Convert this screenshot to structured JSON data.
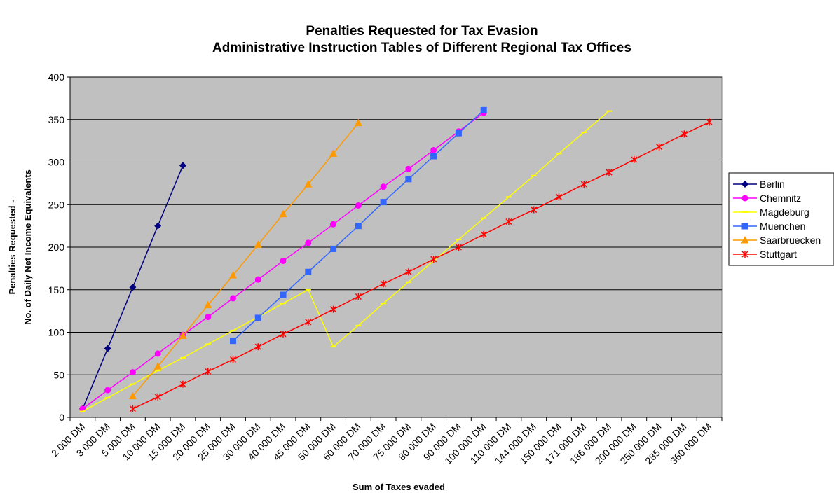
{
  "chart_data": {
    "type": "line",
    "title": "Penalties Requested for Tax Evasion",
    "subtitle": "Administrative Instruction Tables of Different Regional Tax Offices",
    "xlabel": "Sum of Taxes evaded",
    "ylabel": "Penalties Requested -",
    "ylabel2": "No. of Daily Net Income Equivalents",
    "ylim": [
      0,
      400
    ],
    "yticks": [
      0,
      50,
      100,
      150,
      200,
      250,
      300,
      350,
      400
    ],
    "grid": true,
    "legend_position": "right",
    "categories": [
      "2 000 DM",
      "3 000 DM",
      "5 000 DM",
      "10 000 DM",
      "15 000 DM",
      "20 000 DM",
      "25 000 DM",
      "30 000 DM",
      "40 000 DM",
      "45 000 DM",
      "50 000 DM",
      "60 000 DM",
      "70 000 DM",
      "75 000 DM",
      "80 000 DM",
      "90 000 DM",
      "100 000 DM",
      "110 000 DM",
      "144 000 DM",
      "150 000 DM",
      "171 000 DM",
      "186 000 DM",
      "200 000 DM",
      "250 000 DM",
      "285 000 DM",
      "360 000 DM"
    ],
    "series": [
      {
        "name": "Berlin",
        "color": "#000080",
        "marker": "diamond",
        "points": [
          [
            0,
            10
          ],
          [
            1,
            81
          ],
          [
            2,
            153
          ],
          [
            3,
            225
          ],
          [
            4,
            296
          ]
        ]
      },
      {
        "name": "Chemnitz",
        "color": "#FF00FF",
        "marker": "circle",
        "points": [
          [
            0,
            10
          ],
          [
            1,
            32
          ],
          [
            2,
            53
          ],
          [
            3,
            75
          ],
          [
            4,
            97
          ],
          [
            5,
            118
          ],
          [
            6,
            140
          ],
          [
            7,
            162
          ],
          [
            8,
            184
          ],
          [
            9,
            205
          ],
          [
            10,
            227
          ],
          [
            11,
            249
          ],
          [
            12,
            271
          ],
          [
            13,
            292
          ],
          [
            14,
            314
          ],
          [
            15,
            336
          ],
          [
            16,
            358
          ]
        ]
      },
      {
        "name": "Magdeburg",
        "color": "#FFFF00",
        "marker": "dash",
        "points": [
          [
            0,
            7
          ],
          [
            1,
            23
          ],
          [
            2,
            39
          ],
          [
            3,
            55
          ],
          [
            4,
            70
          ],
          [
            5,
            86
          ],
          [
            6,
            102
          ],
          [
            7,
            118
          ],
          [
            8,
            134
          ],
          [
            9,
            150
          ],
          [
            10,
            83
          ],
          [
            11,
            108
          ],
          [
            12,
            134
          ],
          [
            13,
            159
          ],
          [
            14,
            184
          ],
          [
            15,
            209
          ],
          [
            16,
            234
          ],
          [
            17,
            259
          ],
          [
            18,
            284
          ],
          [
            19,
            310
          ],
          [
            20,
            335
          ],
          [
            21,
            360
          ]
        ]
      },
      {
        "name": "Muenchen",
        "color": "#3366FF",
        "marker": "square",
        "points": [
          [
            6,
            90
          ],
          [
            7,
            117
          ],
          [
            8,
            144
          ],
          [
            9,
            171
          ],
          [
            10,
            198
          ],
          [
            11,
            225
          ],
          [
            12,
            253
          ],
          [
            13,
            280
          ],
          [
            14,
            307
          ],
          [
            15,
            334
          ],
          [
            16,
            361
          ]
        ]
      },
      {
        "name": "Saarbruecken",
        "color": "#FF9900",
        "marker": "triangle",
        "points": [
          [
            2,
            25
          ],
          [
            3,
            60
          ],
          [
            4,
            96
          ],
          [
            5,
            132
          ],
          [
            6,
            167
          ],
          [
            7,
            203
          ],
          [
            8,
            239
          ],
          [
            9,
            274
          ],
          [
            10,
            310
          ],
          [
            11,
            346
          ]
        ]
      },
      {
        "name": "Stuttgart",
        "color": "#FF0000",
        "marker": "star",
        "points": [
          [
            2,
            10
          ],
          [
            3,
            24
          ],
          [
            4,
            39
          ],
          [
            5,
            54
          ],
          [
            6,
            68
          ],
          [
            7,
            83
          ],
          [
            8,
            98
          ],
          [
            9,
            112
          ],
          [
            10,
            127
          ],
          [
            11,
            142
          ],
          [
            12,
            157
          ],
          [
            13,
            171
          ],
          [
            14,
            186
          ],
          [
            15,
            200
          ],
          [
            16,
            215
          ],
          [
            17,
            230
          ],
          [
            18,
            244
          ],
          [
            19,
            259
          ],
          [
            20,
            274
          ],
          [
            21,
            288
          ],
          [
            22,
            303
          ],
          [
            23,
            318
          ],
          [
            24,
            333
          ],
          [
            25,
            347
          ]
        ]
      }
    ]
  }
}
